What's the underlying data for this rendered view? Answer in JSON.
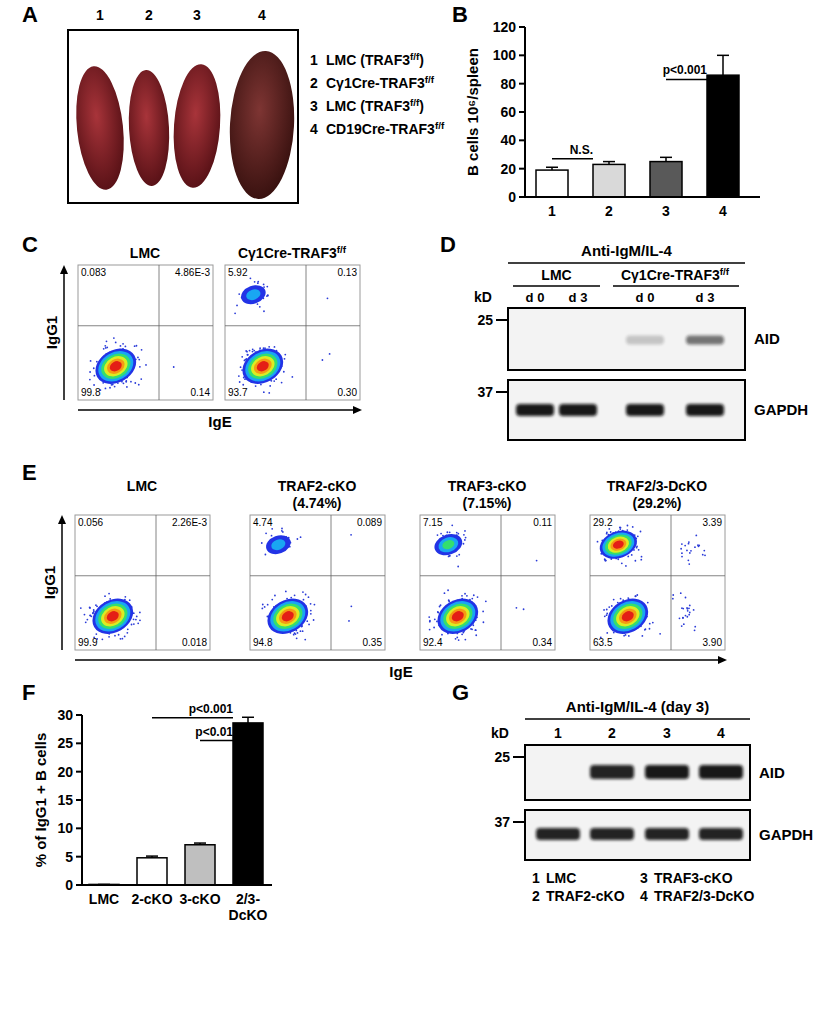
{
  "panels": {
    "A": {
      "panel": "A",
      "lanes": [
        "1",
        "2",
        "3",
        "4"
      ],
      "legend": [
        {
          "number": "1",
          "text": "LMC (TRAF3f/f)"
        },
        {
          "number": "2",
          "text": "Cγ1Cre-TRAF3f/f"
        },
        {
          "number": "3",
          "text": "LMC (TRAF3f/f)"
        },
        {
          "number": "4",
          "text": "CD19Cre-TRAF3f/f"
        }
      ]
    },
    "C": {
      "panel": "C",
      "y_label": "IgG1",
      "x_label": "IgE",
      "plots": [
        {
          "title": "LMC",
          "quadrants": {
            "UL": "0.083",
            "UR": "4.86E-3",
            "LL": "99.8",
            "LR": "0.14"
          }
        },
        {
          "title": "Cγ1Cre-TRAF3f/f",
          "quadrants": {
            "UL": "5.92",
            "UR": "0.13",
            "LL": "93.7",
            "LR": "0.30"
          }
        }
      ]
    },
    "D": {
      "panel": "D",
      "treatment": "Anti-IgM/IL-4",
      "kd_label": "kD",
      "groups": [
        {
          "name": "LMC",
          "lanes": [
            "d 0",
            "d 3"
          ]
        },
        {
          "name": "Cγ1Cre-TRAF3f/f",
          "lanes": [
            "d 0",
            "d 3"
          ]
        }
      ],
      "markers": [
        {
          "label": "25",
          "blot": 0
        },
        {
          "label": "37",
          "blot": 1
        }
      ],
      "blots": [
        {
          "name": "AID",
          "intensity": [
            0,
            0,
            0.2,
            0.55
          ]
        },
        {
          "name": "GAPDH",
          "intensity": [
            0.95,
            0.95,
            0.95,
            0.95
          ]
        }
      ]
    },
    "E": {
      "panel": "E",
      "y_label": "IgG1",
      "x_label": "IgE",
      "plots": [
        {
          "title": "LMC",
          "quadrants": {
            "UL": "0.056",
            "UR": "2.26E-3",
            "LL": "99.9",
            "LR": "0.018"
          }
        },
        {
          "title": "TRAF2-cKO",
          "subtitle": "(4.74%)",
          "quadrants": {
            "UL": "4.74",
            "UR": "0.089",
            "LL": "94.8",
            "LR": "0.35"
          }
        },
        {
          "title": "TRAF3-cKO",
          "subtitle": "(7.15%)",
          "quadrants": {
            "UL": "7.15",
            "UR": "0.11",
            "LL": "92.4",
            "LR": "0.34"
          }
        },
        {
          "title": "TRAF2/3-DcKO",
          "subtitle": "(29.2%)",
          "quadrants": {
            "UL": "29.2",
            "UR": "3.39",
            "LL": "63.5",
            "LR": "3.90"
          }
        }
      ]
    },
    "G": {
      "panel": "G",
      "treatment": "Anti-IgM/IL-4 (day 3)",
      "kd_label": "kD",
      "lanes": [
        "1",
        "2",
        "3",
        "4"
      ],
      "markers": [
        {
          "label": "25",
          "blot": 0
        },
        {
          "label": "37",
          "blot": 1
        }
      ],
      "blots": [
        {
          "name": "AID",
          "intensity": [
            0,
            0.9,
            0.95,
            0.95
          ]
        },
        {
          "name": "GAPDH",
          "intensity": [
            0.9,
            0.9,
            0.9,
            0.9
          ]
        }
      ],
      "legend": [
        {
          "number": "1",
          "text": "LMC"
        },
        {
          "number": "2",
          "text": "TRAF2-cKO"
        },
        {
          "number": "3",
          "text": "TRAF3-cKO"
        },
        {
          "number": "4",
          "text": "TRAF2/3-DcKO"
        }
      ]
    }
  },
  "chart_data": [
    {
      "type": "bar",
      "panel": "B",
      "y_label": "B cells 10⁶/spleen",
      "categories": [
        "1",
        "2",
        "3",
        "4"
      ],
      "values": [
        19,
        23,
        25,
        86
      ],
      "errors": [
        2,
        2,
        3,
        14
      ],
      "colors": [
        "#ffffff",
        "#d9d9d9",
        "#595959",
        "#000000"
      ],
      "ylim": [
        0,
        120
      ],
      "yticks": [
        0,
        20,
        40,
        60,
        80,
        100,
        120
      ],
      "annotations": [
        {
          "text": "N.S.",
          "from": 0,
          "to": 1,
          "y": 27
        },
        {
          "text": "p<0.001",
          "from": 2,
          "to": 3,
          "y": 83
        }
      ]
    },
    {
      "type": "bar",
      "panel": "F",
      "y_label": "% of IgG1 + B cells",
      "categories": [
        "LMC",
        "2-cKO",
        "3-cKO",
        "2/3-\nDcKO"
      ],
      "values": [
        0.1,
        4.8,
        7.1,
        28.6
      ],
      "errors": [
        0,
        0.3,
        0.3,
        1.0
      ],
      "colors": [
        "#ffffff",
        "#ffffff",
        "#bfbfbf",
        "#000000"
      ],
      "ylim": [
        0,
        30
      ],
      "yticks": [
        0,
        5,
        10,
        15,
        20,
        25,
        30
      ],
      "annotations": [
        {
          "text": "p<0.001",
          "from": 1,
          "to": 3,
          "y": 29.5
        },
        {
          "text": "p<0.01",
          "from": 2,
          "to": 3,
          "y": 25.5
        }
      ]
    }
  ]
}
